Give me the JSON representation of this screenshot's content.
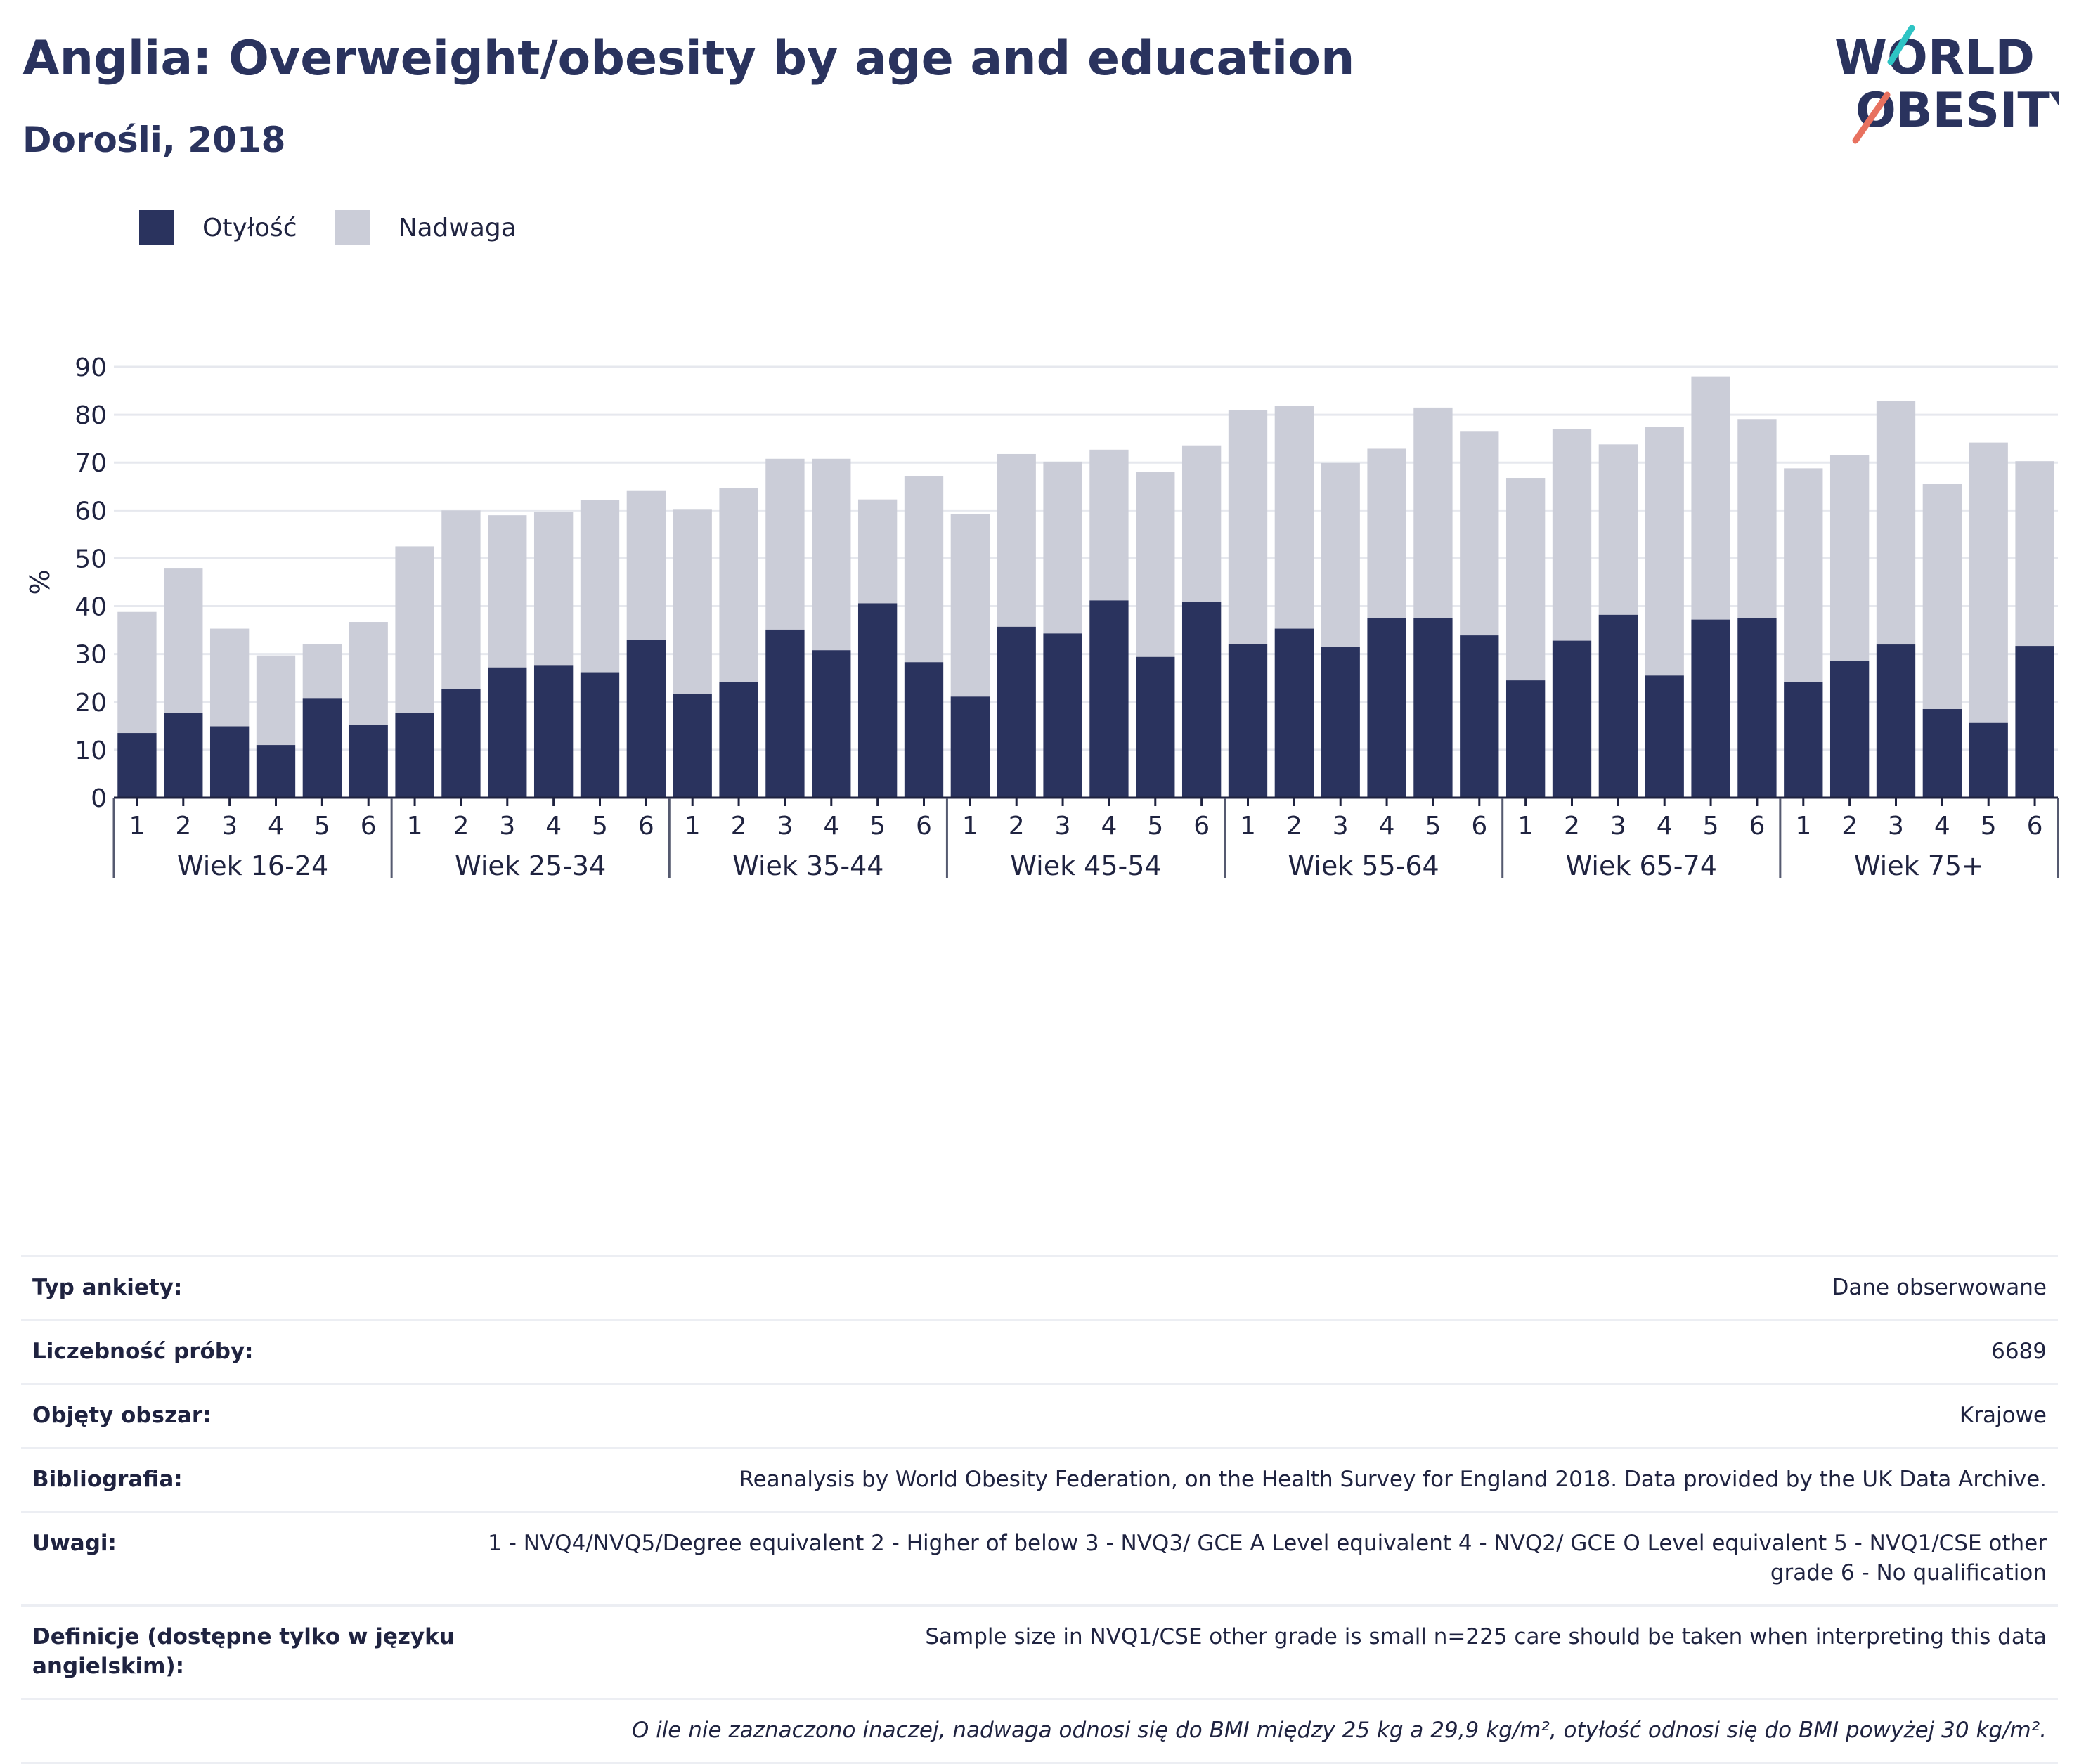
{
  "header": {
    "title": "Anglia: Overweight/obesity by age and education",
    "subtitle": "Dorośli, 2018"
  },
  "logo": {
    "line1": "WORLD",
    "line2": "OBESITY"
  },
  "legend": {
    "obesity_label": "Otyłość",
    "overweight_label": "Nadwaga",
    "obesity_color": "#2a335e",
    "overweight_color": "#cbcdd8"
  },
  "chart_data": {
    "type": "bar",
    "stacked": true,
    "ylabel": "%",
    "ylim": [
      0,
      90
    ],
    "yticks": [
      0,
      10,
      20,
      30,
      40,
      50,
      60,
      70,
      80,
      90
    ],
    "grid": true,
    "legend_position": "top-left",
    "groups": [
      {
        "label": "Wiek 16-24",
        "categories": [
          "1",
          "2",
          "3",
          "4",
          "5",
          "6"
        ]
      },
      {
        "label": "Wiek 25-34",
        "categories": [
          "1",
          "2",
          "3",
          "4",
          "5",
          "6"
        ]
      },
      {
        "label": "Wiek 35-44",
        "categories": [
          "1",
          "2",
          "3",
          "4",
          "5",
          "6"
        ]
      },
      {
        "label": "Wiek 45-54",
        "categories": [
          "1",
          "2",
          "3",
          "4",
          "5",
          "6"
        ]
      },
      {
        "label": "Wiek 55-64",
        "categories": [
          "1",
          "2",
          "3",
          "4",
          "5",
          "6"
        ]
      },
      {
        "label": "Wiek 65-74",
        "categories": [
          "1",
          "2",
          "3",
          "4",
          "5",
          "6"
        ]
      },
      {
        "label": "Wiek 75+",
        "categories": [
          "1",
          "2",
          "3",
          "4",
          "5",
          "6"
        ]
      }
    ],
    "series": [
      {
        "name": "Otyłość",
        "color": "#2a335e",
        "values": [
          13.5,
          17.7,
          14.9,
          11.0,
          20.8,
          15.2,
          17.7,
          22.7,
          27.2,
          27.7,
          26.2,
          33.0,
          21.6,
          24.2,
          35.1,
          30.8,
          40.6,
          28.3,
          21.1,
          35.7,
          34.3,
          41.2,
          29.4,
          40.9,
          32.1,
          35.3,
          31.5,
          37.5,
          37.5,
          33.9,
          24.5,
          32.8,
          38.2,
          25.5,
          37.2,
          37.5,
          24.1,
          28.6,
          32.0,
          18.5,
          15.6,
          31.7
        ]
      },
      {
        "name": "Nadwaga",
        "color": "#cbcdd8",
        "values": [
          25.3,
          30.3,
          20.4,
          18.7,
          11.3,
          21.5,
          34.8,
          37.3,
          31.8,
          32.0,
          36.0,
          31.2,
          38.7,
          40.4,
          35.7,
          40.0,
          21.7,
          38.9,
          38.2,
          36.1,
          35.9,
          31.5,
          38.6,
          32.7,
          48.8,
          46.5,
          38.4,
          35.4,
          44.0,
          42.7,
          42.3,
          44.2,
          35.6,
          52.0,
          50.8,
          41.6,
          44.7,
          42.9,
          50.9,
          47.1,
          58.6,
          38.6
        ]
      }
    ]
  },
  "info_table": {
    "rows": [
      {
        "label": "Typ ankiety:",
        "value": "Dane obserwowane"
      },
      {
        "label": "Liczebność próby:",
        "value": "6689"
      },
      {
        "label": "Objęty obszar:",
        "value": "Krajowe"
      },
      {
        "label": "Bibliografia:",
        "value": "Reanalysis by World Obesity Federation, on the Health Survey for England 2018. Data provided by the UK Data Archive."
      },
      {
        "label": "Uwagi:",
        "value": "1 - NVQ4/NVQ5/Degree equivalent 2 - Higher of below 3 - NVQ3/ GCE A Level equivalent 4 - NVQ2/ GCE O Level equivalent 5 - NVQ1/CSE other grade 6 - No qualification"
      },
      {
        "label": "Definicje (dostępne tylko w języku angielskim):",
        "value": "Sample size in NVQ1/CSE other grade is small n=225 care should be taken when interpreting this data"
      },
      {
        "label": "",
        "value": "O ile nie zaznaczono inaczej, nadwaga odnosi się do BMI między 25 kg a 29,9 kg/m², otyłość odnosi się do BMI powyżej 30 kg/m²."
      }
    ]
  }
}
